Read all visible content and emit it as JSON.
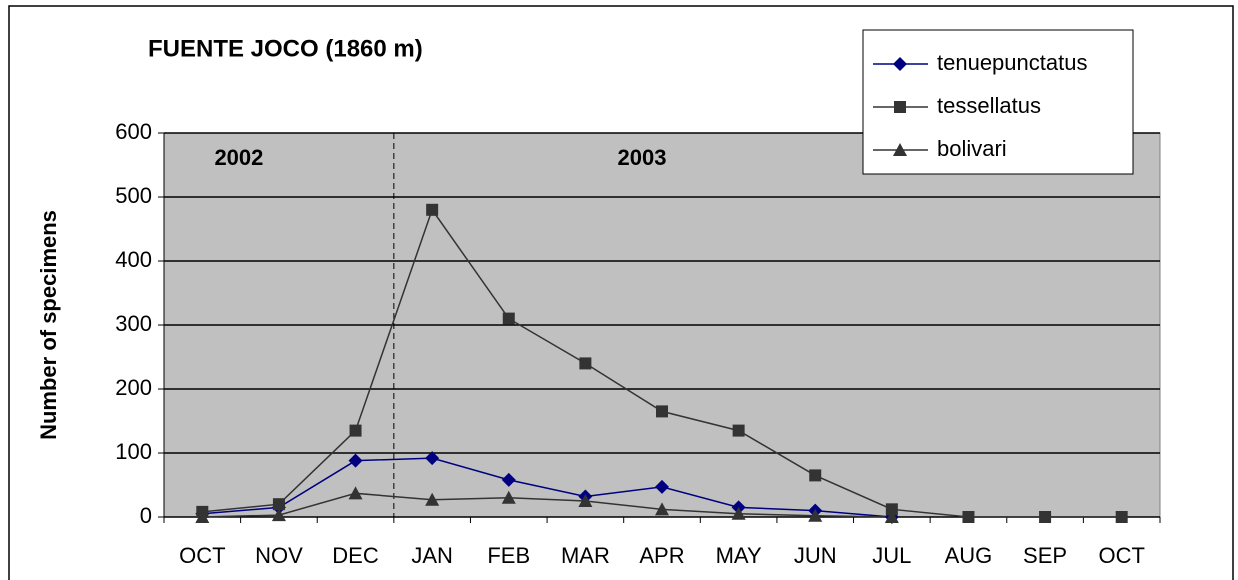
{
  "chart_data": {
    "type": "line",
    "title": "FUENTE JOCO (1860 m)",
    "y_label": "Number of specimens",
    "categories": [
      "OCT",
      "NOV",
      "DEC",
      "JAN",
      "FEB",
      "MAR",
      "APR",
      "MAY",
      "JUN",
      "JUL",
      "AUG",
      "SEP",
      "OCT"
    ],
    "series": [
      {
        "name": "tenuepunctatus",
        "color": "#000080",
        "marker": "diamond",
        "values": [
          5,
          15,
          88,
          92,
          58,
          32,
          47,
          15,
          10,
          0,
          null,
          null,
          null
        ]
      },
      {
        "name": "tessellatus",
        "color": "#333333",
        "marker": "square",
        "values": [
          8,
          20,
          135,
          480,
          310,
          240,
          165,
          135,
          65,
          12,
          0,
          0,
          0
        ]
      },
      {
        "name": "bolivari",
        "color": "#333333",
        "marker": "triangle",
        "values": [
          0,
          3,
          37,
          27,
          30,
          25,
          12,
          5,
          2,
          0,
          null,
          null,
          null
        ]
      }
    ],
    "annotations": [
      "2002",
      "2003"
    ],
    "ylim": [
      0,
      600
    ],
    "yticks": [
      0,
      100,
      200,
      300,
      400,
      500,
      600
    ],
    "grid": true,
    "plot_background": "#c0c0c0"
  }
}
